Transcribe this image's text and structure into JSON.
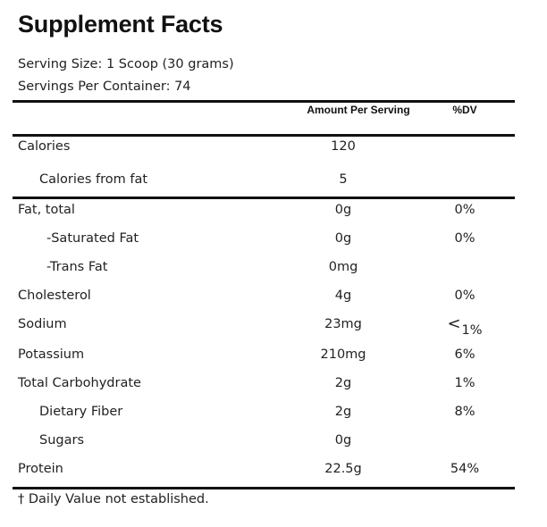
{
  "title": "Supplement Facts",
  "serving_size": "Serving Size: 1 Scoop (30 grams)",
  "servings_per_container": "Servings Per Container: 74",
  "columns": {
    "amount": "Amount Per Serving",
    "dv": "%DV"
  },
  "nutrients": [
    {
      "label": "Calories",
      "amount": "120",
      "dv": ""
    },
    {
      "label": "Calories from fat",
      "amount": "5",
      "dv": ""
    },
    {
      "label": "Fat, total",
      "amount": "0g",
      "dv": "0%"
    },
    {
      "label": "-Saturated Fat",
      "amount": "0g",
      "dv": "0%"
    },
    {
      "label": "-Trans Fat",
      "amount": "0mg",
      "dv": ""
    },
    {
      "label": "Cholesterol",
      "amount": "4g",
      "dv": "0%"
    },
    {
      "label": "Sodium",
      "amount": "23mg",
      "dv_prefix": "<",
      "dv": "1%"
    },
    {
      "label": "Potassium",
      "amount": "210mg",
      "dv": "6%"
    },
    {
      "label": "Total Carbohydrate",
      "amount": "2g",
      "dv": "1%"
    },
    {
      "label": "Dietary Fiber",
      "amount": "2g",
      "dv": "8%"
    },
    {
      "label": "Sugars",
      "amount": "0g",
      "dv": ""
    },
    {
      "label": "Protein",
      "amount": "22.5g",
      "dv": "54%"
    }
  ],
  "footnote": "† Daily Value not established."
}
